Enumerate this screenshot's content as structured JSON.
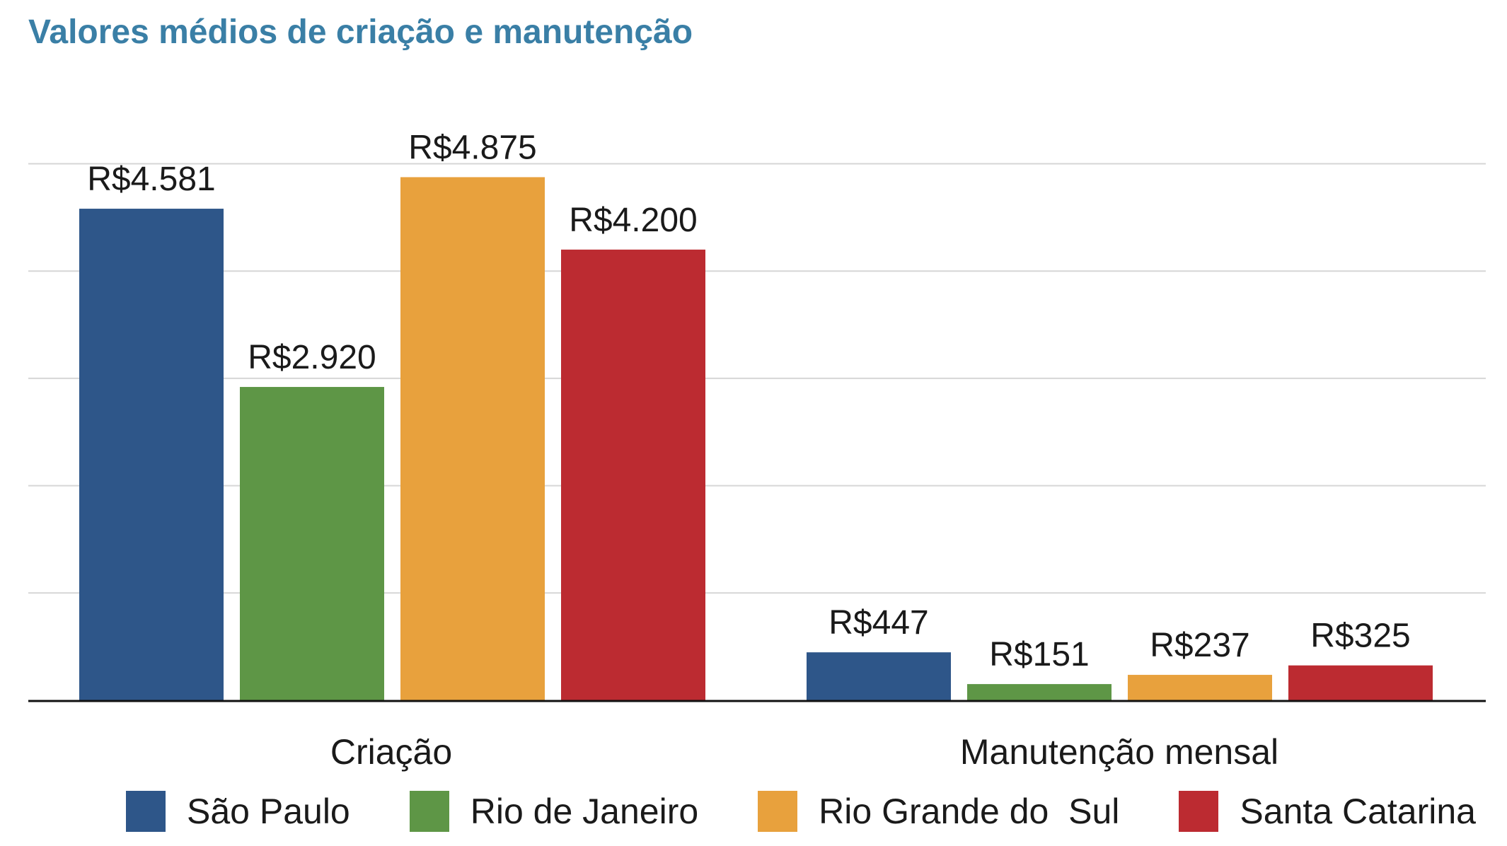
{
  "chart_data": {
    "type": "bar",
    "title": "Valores médios de criação e manutenção",
    "categories": [
      "Criação",
      "Manutenção mensal"
    ],
    "series": [
      {
        "name": "São Paulo",
        "color": "#2e5689",
        "values": [
          4581,
          447
        ],
        "labels": [
          "R$4.581",
          "R$447"
        ]
      },
      {
        "name": "Rio de Janeiro",
        "color": "#5e9646",
        "values": [
          2920,
          151
        ],
        "labels": [
          "R$2.920",
          "R$151"
        ]
      },
      {
        "name": "Rio Grande do  Sul",
        "color": "#e8a13d",
        "values": [
          4875,
          237
        ],
        "labels": [
          "R$4.875",
          "R$237"
        ]
      },
      {
        "name": "Santa Catarina",
        "color": "#bc2b31",
        "values": [
          4200,
          325
        ],
        "labels": [
          "R$4.200",
          "R$325"
        ]
      }
    ],
    "ylim": [
      0,
      5000
    ],
    "grid": true,
    "legend": "bottom",
    "xlabel": "",
    "ylabel": ""
  }
}
